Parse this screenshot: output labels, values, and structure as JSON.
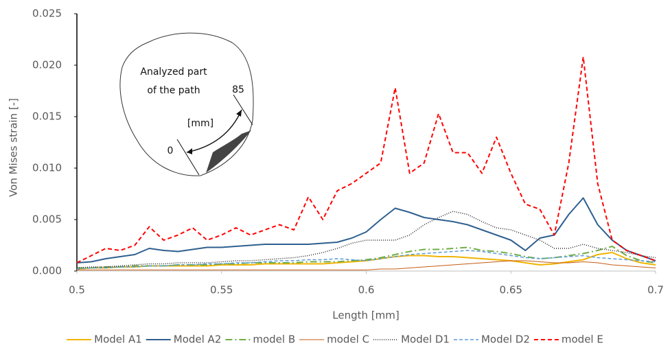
{
  "chart_data": {
    "type": "line",
    "x_label": "Length [mm]",
    "y_label": "Von Mises strain [-]",
    "annotations": [
      "Analyzed part",
      "of the path",
      "85",
      "[mm]",
      "0"
    ],
    "xlim": [
      0.5,
      0.7
    ],
    "xticks": [
      0.5,
      0.55,
      0.6,
      0.65,
      0.7
    ],
    "ylim": [
      0,
      0.025
    ],
    "yticks": [
      {
        "value": 0,
        "label": "0.000"
      },
      {
        "value": 0.005,
        "label": "0.005"
      },
      {
        "value": 0.01,
        "label": "0.010"
      },
      {
        "value": 0.015,
        "label": "0.015"
      },
      {
        "value": 0.02,
        "label": "0.020"
      },
      {
        "value": 0.025,
        "label": "0.025"
      }
    ],
    "grid": false,
    "legend": "bottom",
    "x": [
      0.5,
      0.505,
      0.51,
      0.515,
      0.52,
      0.525,
      0.53,
      0.535,
      0.54,
      0.545,
      0.55,
      0.555,
      0.56,
      0.565,
      0.57,
      0.575,
      0.58,
      0.585,
      0.59,
      0.595,
      0.6,
      0.605,
      0.61,
      0.615,
      0.62,
      0.625,
      0.63,
      0.635,
      0.64,
      0.645,
      0.65,
      0.655,
      0.66,
      0.665,
      0.67,
      0.675,
      0.68,
      0.685,
      0.69,
      0.695,
      0.7
    ],
    "series": [
      {
        "name": "Model A1",
        "color": "#f0b400",
        "dash": "none",
        "width": 2,
        "values": [
          0.0002,
          0.0003,
          0.0003,
          0.0004,
          0.0004,
          0.0005,
          0.0005,
          0.0005,
          0.0005,
          0.0005,
          0.0006,
          0.0006,
          0.0006,
          0.0007,
          0.0007,
          0.0007,
          0.0007,
          0.0007,
          0.0008,
          0.0009,
          0.001,
          0.0012,
          0.0014,
          0.0015,
          0.0015,
          0.0014,
          0.0014,
          0.0013,
          0.0012,
          0.0011,
          0.001,
          0.0008,
          0.0006,
          0.0007,
          0.0009,
          0.0011,
          0.0016,
          0.0018,
          0.0012,
          0.0008,
          0.0006
        ]
      },
      {
        "name": "Model A2",
        "color": "#2e5f8f",
        "dash": "none",
        "width": 2,
        "values": [
          0.0008,
          0.0009,
          0.0012,
          0.0014,
          0.0016,
          0.0022,
          0.002,
          0.0019,
          0.0021,
          0.0023,
          0.0023,
          0.0024,
          0.0025,
          0.0026,
          0.0026,
          0.0026,
          0.0026,
          0.0027,
          0.0028,
          0.0032,
          0.0038,
          0.005,
          0.0061,
          0.0057,
          0.0052,
          0.005,
          0.0048,
          0.0045,
          0.004,
          0.0035,
          0.003,
          0.002,
          0.0032,
          0.0035,
          0.0055,
          0.0071,
          0.0045,
          0.003,
          0.002,
          0.0015,
          0.001
        ]
      },
      {
        "name": "model B",
        "color": "#70ad47",
        "dash": "10,4,2,4",
        "width": 2,
        "values": [
          0.0003,
          0.0003,
          0.0004,
          0.0004,
          0.0005,
          0.0005,
          0.0005,
          0.0006,
          0.0006,
          0.0006,
          0.0007,
          0.0007,
          0.0008,
          0.0008,
          0.0008,
          0.0008,
          0.0009,
          0.0009,
          0.0009,
          0.001,
          0.0011,
          0.0013,
          0.0016,
          0.0019,
          0.0021,
          0.0021,
          0.0022,
          0.0023,
          0.002,
          0.0019,
          0.0017,
          0.0014,
          0.0012,
          0.0013,
          0.0015,
          0.0017,
          0.002,
          0.0024,
          0.0015,
          0.001,
          0.0008
        ]
      },
      {
        "name": "model C",
        "color": "#c55a11",
        "dash": "none",
        "width": 1,
        "values": [
          0.0001,
          0.0001,
          0.0001,
          0.0001,
          0.0001,
          0.0001,
          0.0001,
          0.0001,
          0.0001,
          0.0001,
          0.0001,
          0.0001,
          0.0001,
          0.0001,
          0.0001,
          0.0001,
          0.0001,
          0.0001,
          0.0001,
          0.0001,
          0.0001,
          0.0002,
          0.0002,
          0.0003,
          0.0004,
          0.0005,
          0.0006,
          0.0007,
          0.0008,
          0.0009,
          0.001,
          0.001,
          0.0009,
          0.0008,
          0.0008,
          0.0009,
          0.0008,
          0.0006,
          0.0005,
          0.0004,
          0.0003
        ]
      },
      {
        "name": "Model D1",
        "color": "#222222",
        "dash": "1,2",
        "width": 1.5,
        "values": [
          0.0003,
          0.0004,
          0.0004,
          0.0005,
          0.0006,
          0.0007,
          0.0007,
          0.0008,
          0.0008,
          0.0008,
          0.0009,
          0.001,
          0.001,
          0.0011,
          0.0012,
          0.0013,
          0.0015,
          0.0018,
          0.0022,
          0.0027,
          0.003,
          0.003,
          0.003,
          0.0035,
          0.0045,
          0.0052,
          0.0058,
          0.0055,
          0.0048,
          0.0042,
          0.004,
          0.0035,
          0.003,
          0.0022,
          0.0022,
          0.0026,
          0.0022,
          0.002,
          0.0018,
          0.0015,
          0.0013
        ]
      },
      {
        "name": "Model D2",
        "color": "#5b9bd5",
        "dash": "5,3",
        "width": 1.5,
        "values": [
          0.0002,
          0.0003,
          0.0003,
          0.0004,
          0.0004,
          0.0005,
          0.0005,
          0.0006,
          0.0006,
          0.0007,
          0.0007,
          0.0008,
          0.0008,
          0.0009,
          0.001,
          0.001,
          0.0011,
          0.0011,
          0.0012,
          0.0011,
          0.001,
          0.0012,
          0.0014,
          0.0016,
          0.0017,
          0.0018,
          0.0019,
          0.002,
          0.0019,
          0.0017,
          0.0015,
          0.0013,
          0.0012,
          0.0013,
          0.0014,
          0.0015,
          0.0013,
          0.0012,
          0.0011,
          0.001,
          0.0009
        ]
      },
      {
        "name": "model E",
        "color": "#ff0000",
        "dash": "6,4",
        "width": 2,
        "values": [
          0.0008,
          0.0015,
          0.0022,
          0.002,
          0.0025,
          0.0043,
          0.003,
          0.0035,
          0.0042,
          0.003,
          0.0035,
          0.0042,
          0.0035,
          0.004,
          0.0045,
          0.004,
          0.0072,
          0.005,
          0.0078,
          0.0085,
          0.0095,
          0.0105,
          0.0178,
          0.0095,
          0.0105,
          0.0153,
          0.0115,
          0.0115,
          0.0095,
          0.013,
          0.0095,
          0.0065,
          0.006,
          0.0035,
          0.0105,
          0.0208,
          0.0085,
          0.003,
          0.002,
          0.0015,
          0.001
        ]
      }
    ]
  }
}
